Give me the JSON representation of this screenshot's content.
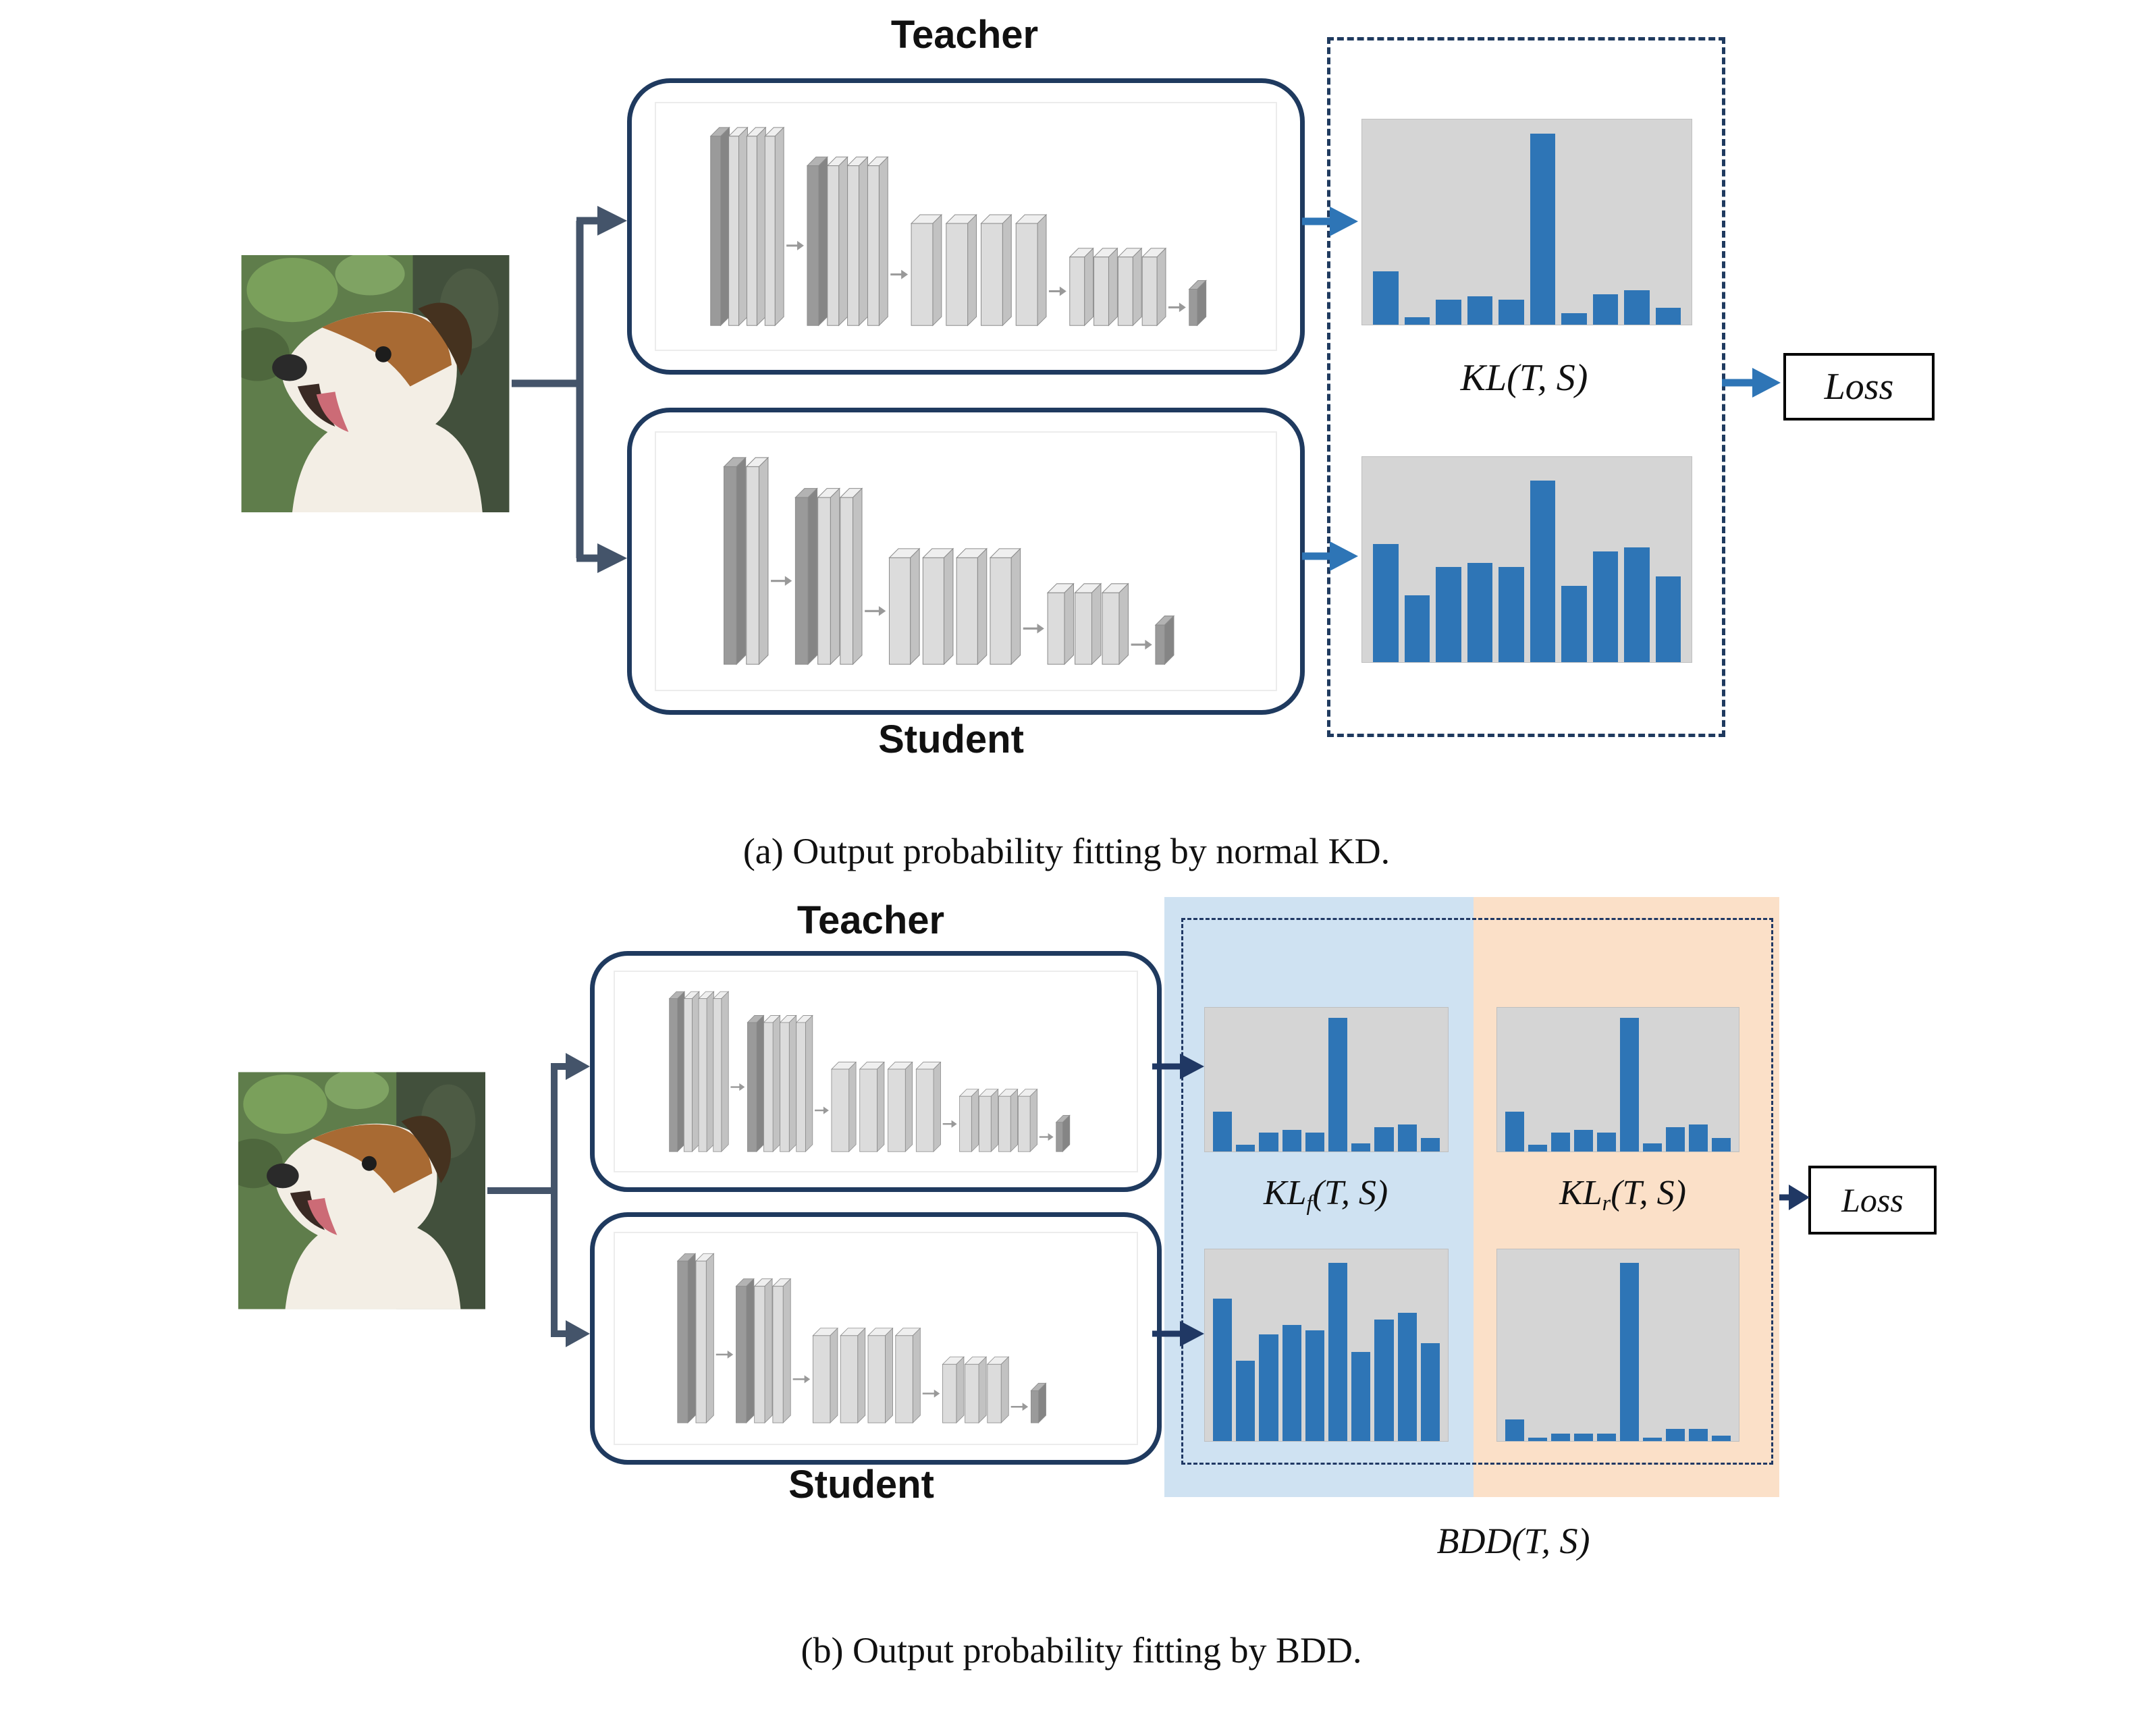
{
  "figure": {
    "panel_a": {
      "teacher_label": "Teacher",
      "student_label": "Student",
      "kl_label": {
        "base": "KL",
        "args": "(T, S)"
      },
      "loss_label": "Loss",
      "caption": "(a) Output probability fitting by normal KD."
    },
    "panel_b": {
      "teacher_label": "Teacher",
      "student_label": "Student",
      "kl_forward": {
        "base": "KL",
        "sub": "f",
        "args": "(T, S)"
      },
      "kl_reverse": {
        "base": "KL",
        "sub": "r",
        "args": "(T, S)"
      },
      "bdd_label": {
        "base": "BDD",
        "args": "(T, S)"
      },
      "loss_label": "Loss",
      "caption": "(b) Output probability fitting by BDD."
    },
    "colors": {
      "bar_blue": "#2e75b6",
      "network_border": "#1f3a5f",
      "forward_panel_blue": "#cfe2f2",
      "reverse_panel_orange": "#fbe0c8",
      "arrow_slate": "#44546a",
      "arrow_blue": "#2e75b6",
      "arrow_navy": "#203864",
      "chart_background": "#d5d5d5"
    }
  },
  "chart_data": [
    {
      "id": "a-teacher-output",
      "type": "bar",
      "title": "Teacher output probability (normal KD)",
      "values": [
        0.28,
        0.04,
        0.13,
        0.15,
        0.13,
        1.0,
        0.06,
        0.16,
        0.18,
        0.09
      ],
      "xlabel": "",
      "ylabel": "",
      "ylim": [
        0,
        1
      ],
      "bar_color": "#2e75b6"
    },
    {
      "id": "a-student-output",
      "type": "bar",
      "title": "Student output probability (normal KD)",
      "values": [
        0.62,
        0.35,
        0.5,
        0.52,
        0.5,
        0.95,
        0.4,
        0.58,
        0.6,
        0.45
      ],
      "xlabel": "",
      "ylabel": "",
      "ylim": [
        0,
        1
      ],
      "bar_color": "#2e75b6"
    },
    {
      "id": "b-teacher-forward",
      "type": "bar",
      "title": "Teacher output probability (forward KL)",
      "values": [
        0.3,
        0.05,
        0.14,
        0.16,
        0.14,
        1.0,
        0.06,
        0.18,
        0.2,
        0.1
      ],
      "xlabel": "",
      "ylabel": "",
      "ylim": [
        0,
        1
      ],
      "bar_color": "#2e75b6"
    },
    {
      "id": "b-teacher-reverse",
      "type": "bar",
      "title": "Teacher output probability (reverse KL)",
      "values": [
        0.3,
        0.05,
        0.14,
        0.16,
        0.14,
        1.0,
        0.06,
        0.18,
        0.2,
        0.1
      ],
      "xlabel": "",
      "ylabel": "",
      "ylim": [
        0,
        1
      ],
      "bar_color": "#2e75b6"
    },
    {
      "id": "b-student-forward",
      "type": "bar",
      "title": "Student output probability (forward KL)",
      "values": [
        0.8,
        0.45,
        0.6,
        0.65,
        0.62,
        1.0,
        0.5,
        0.68,
        0.72,
        0.55
      ],
      "xlabel": "",
      "ylabel": "",
      "ylim": [
        0,
        1
      ],
      "bar_color": "#2e75b6"
    },
    {
      "id": "b-student-reverse",
      "type": "bar",
      "title": "Student output probability (reverse KL)",
      "values": [
        0.12,
        0.02,
        0.04,
        0.04,
        0.04,
        1.0,
        0.02,
        0.07,
        0.07,
        0.03
      ],
      "xlabel": "",
      "ylabel": "",
      "ylim": [
        0,
        1
      ],
      "bar_color": "#2e75b6"
    }
  ]
}
